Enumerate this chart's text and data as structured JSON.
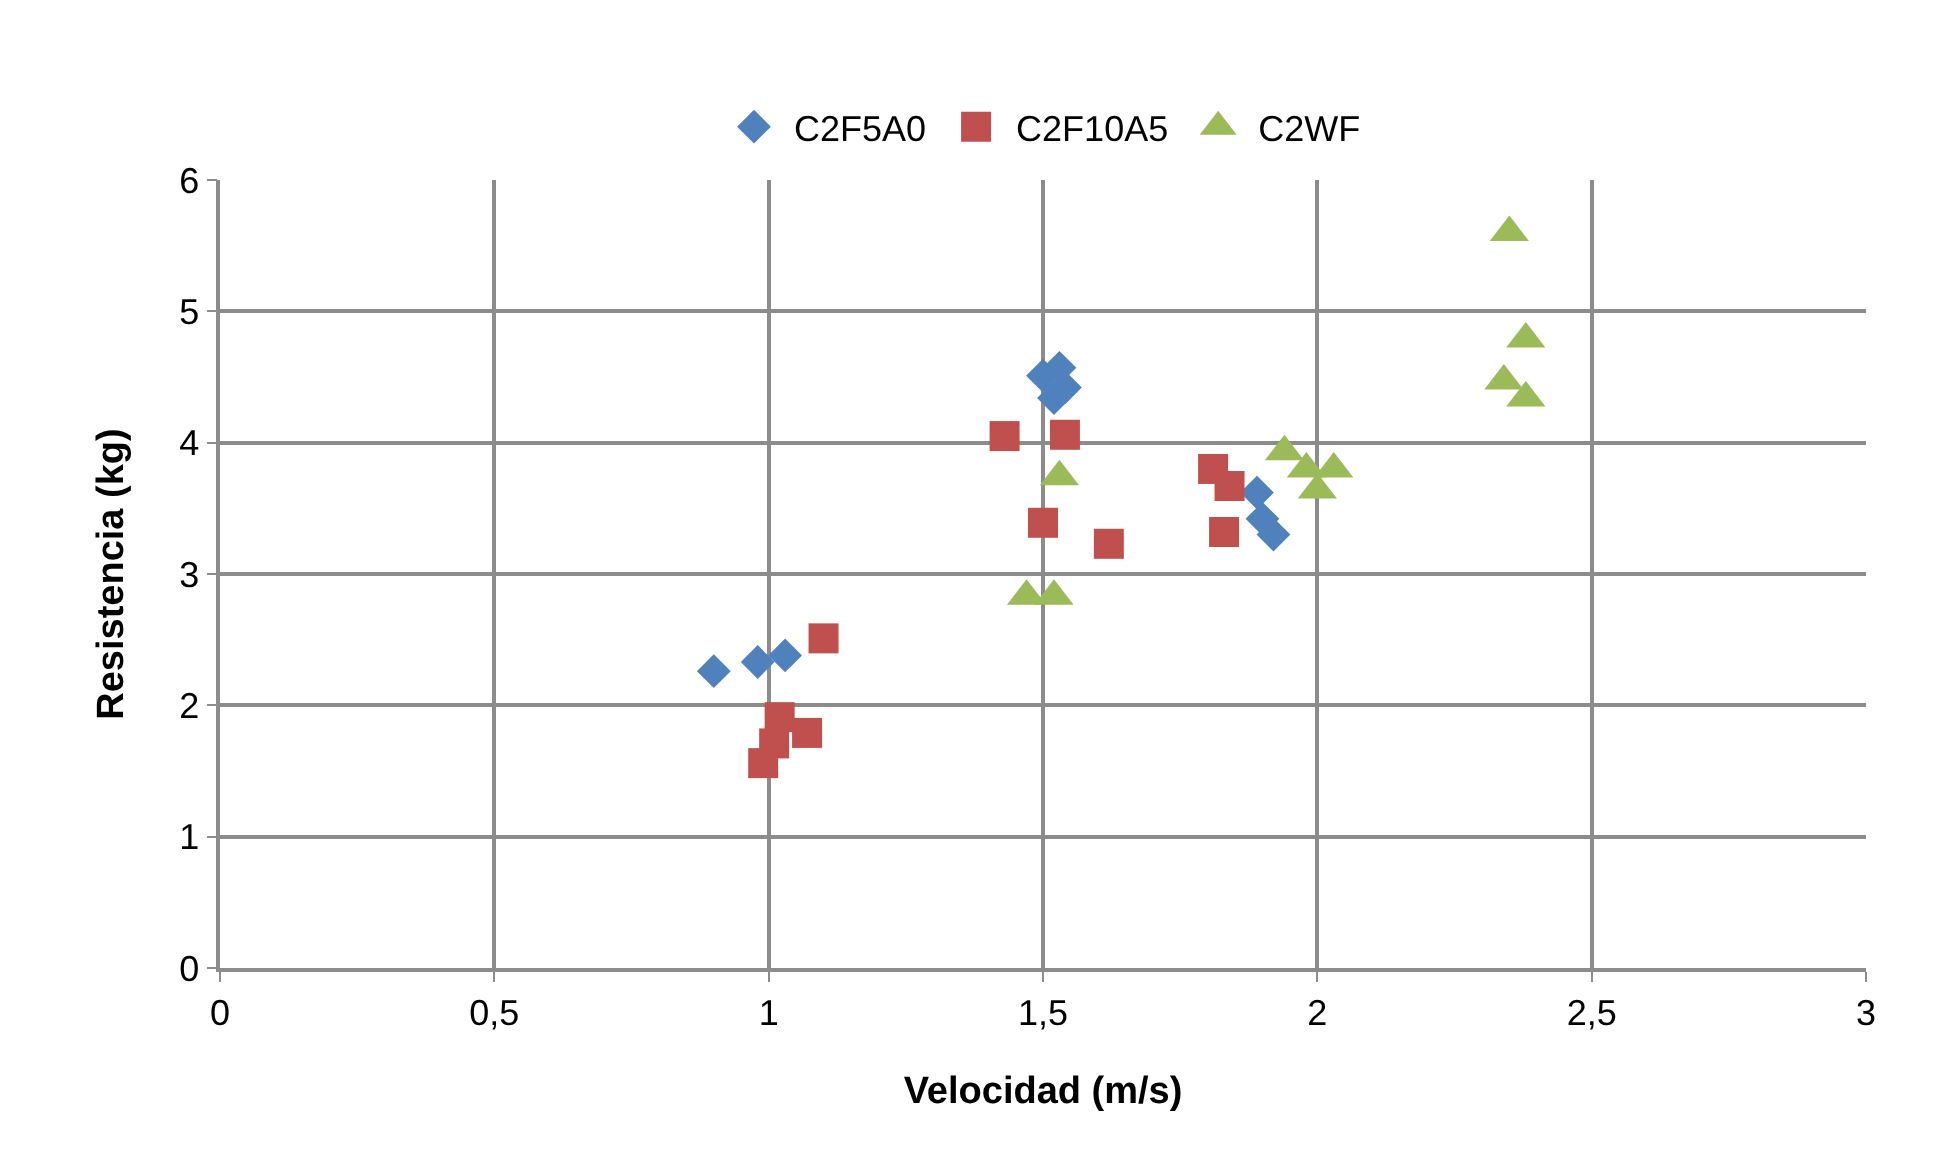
{
  "chart_data": {
    "type": "scatter",
    "xlabel": "Velocidad (m/s)",
    "ylabel": "Resistencia (kg)",
    "xlim": [
      0,
      3
    ],
    "xticks": [
      {
        "value": 0,
        "label": "0"
      },
      {
        "value": 0.5,
        "label": "0,5"
      },
      {
        "value": 1,
        "label": "1"
      },
      {
        "value": 1.5,
        "label": "1,5"
      },
      {
        "value": 2,
        "label": "2"
      },
      {
        "value": 2.5,
        "label": "2,5"
      },
      {
        "value": 3,
        "label": "3"
      }
    ],
    "ylim": [
      0,
      6
    ],
    "yticks": [
      0,
      1,
      2,
      3,
      4,
      5,
      6
    ],
    "grid": true,
    "legend": "top",
    "series": [
      {
        "name": "C2F5A0",
        "color": "#4f81bd",
        "marker": "diamond",
        "x": [
          0.9,
          0.98,
          1.03,
          1.5,
          1.53,
          1.54,
          1.52,
          1.89,
          1.9,
          1.92
        ],
        "values": [
          2.26,
          2.33,
          2.38,
          4.51,
          4.57,
          4.42,
          4.34,
          3.62,
          3.42,
          3.3
        ]
      },
      {
        "name": "C2F10A5",
        "color": "#c0504d",
        "marker": "square",
        "x": [
          1.1,
          1.02,
          1.01,
          1.07,
          0.99,
          1.43,
          1.54,
          1.5,
          1.62,
          1.81,
          1.84,
          1.83
        ],
        "values": [
          2.51,
          1.91,
          1.71,
          1.79,
          1.56,
          4.05,
          4.06,
          3.39,
          3.23,
          3.8,
          3.67,
          3.32
        ]
      },
      {
        "name": "C2WF",
        "color": "#9bbb59",
        "marker": "triangle",
        "x": [
          1.53,
          1.47,
          1.52,
          1.94,
          1.98,
          2.03,
          2.0,
          2.35,
          2.38,
          2.34,
          2.38
        ],
        "values": [
          3.74,
          2.83,
          2.83,
          3.93,
          3.8,
          3.8,
          3.64,
          5.6,
          4.79,
          4.47,
          4.34
        ]
      }
    ]
  }
}
